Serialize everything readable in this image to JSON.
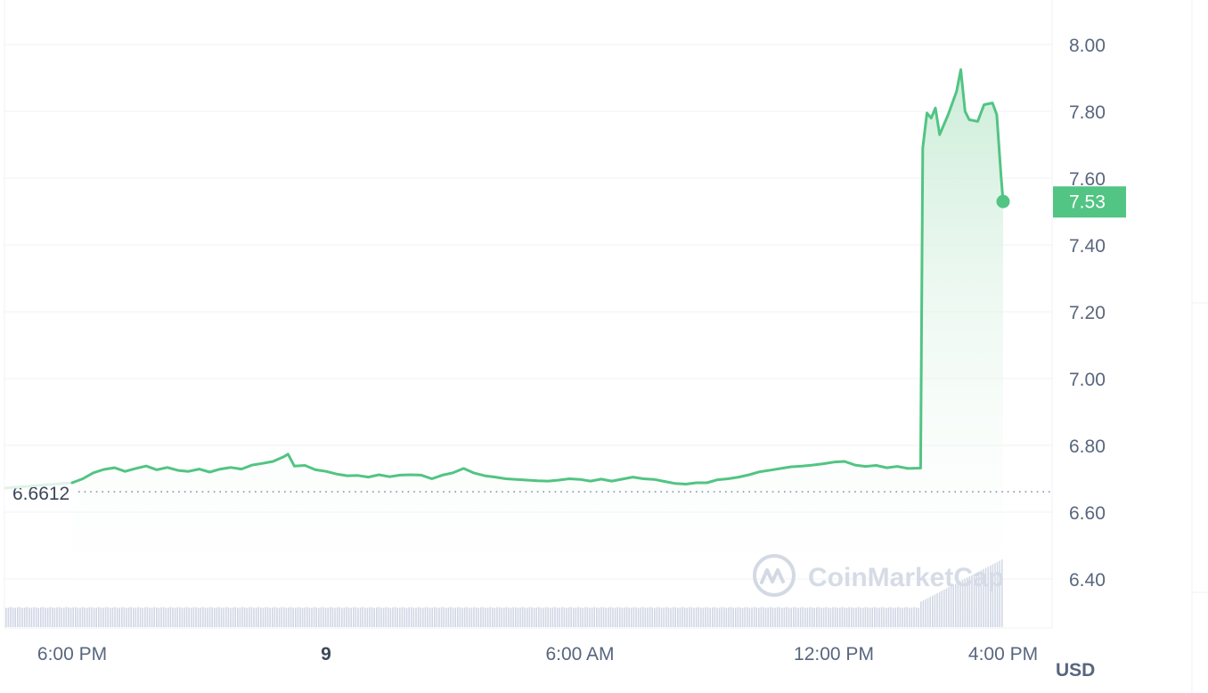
{
  "chart_data": {
    "type": "line",
    "title": "",
    "xlabel": "",
    "ylabel": "",
    "currency_label": "USD",
    "watermark": "CoinMarketCap",
    "y_ticks": [
      "8.00",
      "7.80",
      "7.60",
      "7.40",
      "7.20",
      "7.00",
      "6.80",
      "6.60",
      "6.40"
    ],
    "ylim": [
      6.32,
      8.1
    ],
    "x_ticks": [
      {
        "label": "6:00 PM",
        "t": 0,
        "bold": false
      },
      {
        "label": "9",
        "t": 6,
        "bold": true
      },
      {
        "label": "6:00 AM",
        "t": 12,
        "bold": false
      },
      {
        "label": "12:00 PM",
        "t": 18,
        "bold": false
      },
      {
        "label": "4:00 PM",
        "t": 22,
        "bold": false
      }
    ],
    "xlim": [
      -1.75,
      22.5
    ],
    "reference_line": {
      "value": 6.6612,
      "label": "6.6612"
    },
    "last_price": {
      "value": 7.53,
      "label": "7.53"
    },
    "colors": {
      "line": "#16c784",
      "line_stroke": "#52c483",
      "area_top": "#c9ecd6",
      "badge": "#52c483",
      "grid": "#eff2f5",
      "axis_text": "#58667e",
      "volume": "#cfd6e4"
    },
    "series": [
      {
        "points": [
          [
            0,
            6.688
          ],
          [
            0.25,
            6.7
          ],
          [
            0.5,
            6.718
          ],
          [
            0.75,
            6.728
          ],
          [
            1,
            6.733
          ],
          [
            1.25,
            6.722
          ],
          [
            1.5,
            6.731
          ],
          [
            1.75,
            6.738
          ],
          [
            2,
            6.727
          ],
          [
            2.25,
            6.734
          ],
          [
            2.5,
            6.725
          ],
          [
            2.75,
            6.722
          ],
          [
            3,
            6.729
          ],
          [
            3.25,
            6.72
          ],
          [
            3.5,
            6.729
          ],
          [
            3.75,
            6.734
          ],
          [
            4,
            6.729
          ],
          [
            4.25,
            6.741
          ],
          [
            4.5,
            6.746
          ],
          [
            4.75,
            6.752
          ],
          [
            5,
            6.766
          ],
          [
            5.1,
            6.774
          ],
          [
            5.25,
            6.738
          ],
          [
            5.5,
            6.74
          ],
          [
            5.75,
            6.727
          ],
          [
            6,
            6.722
          ],
          [
            6.25,
            6.714
          ],
          [
            6.5,
            6.709
          ],
          [
            6.75,
            6.71
          ],
          [
            7,
            6.705
          ],
          [
            7.25,
            6.712
          ],
          [
            7.5,
            6.706
          ],
          [
            7.75,
            6.711
          ],
          [
            8,
            6.712
          ],
          [
            8.25,
            6.711
          ],
          [
            8.5,
            6.7
          ],
          [
            8.75,
            6.711
          ],
          [
            9,
            6.718
          ],
          [
            9.25,
            6.731
          ],
          [
            9.5,
            6.717
          ],
          [
            9.75,
            6.709
          ],
          [
            10,
            6.705
          ],
          [
            10.25,
            6.7
          ],
          [
            10.5,
            6.698
          ],
          [
            10.75,
            6.696
          ],
          [
            11,
            6.694
          ],
          [
            11.25,
            6.693
          ],
          [
            11.5,
            6.696
          ],
          [
            11.75,
            6.7
          ],
          [
            12,
            6.698
          ],
          [
            12.25,
            6.693
          ],
          [
            12.5,
            6.699
          ],
          [
            12.75,
            6.693
          ],
          [
            13,
            6.699
          ],
          [
            13.25,
            6.705
          ],
          [
            13.5,
            6.7
          ],
          [
            13.75,
            6.698
          ],
          [
            14,
            6.692
          ],
          [
            14.25,
            6.686
          ],
          [
            14.5,
            6.684
          ],
          [
            14.75,
            6.688
          ],
          [
            15,
            6.688
          ],
          [
            15.25,
            6.697
          ],
          [
            15.5,
            6.7
          ],
          [
            15.75,
            6.705
          ],
          [
            16,
            6.712
          ],
          [
            16.25,
            6.721
          ],
          [
            16.5,
            6.726
          ],
          [
            16.75,
            6.731
          ],
          [
            17,
            6.736
          ],
          [
            17.25,
            6.738
          ],
          [
            17.5,
            6.741
          ],
          [
            17.75,
            6.745
          ],
          [
            18,
            6.75
          ],
          [
            18.25,
            6.752
          ],
          [
            18.5,
            6.741
          ],
          [
            18.75,
            6.737
          ],
          [
            19,
            6.74
          ],
          [
            19.25,
            6.733
          ],
          [
            19.5,
            6.737
          ],
          [
            19.75,
            6.731
          ],
          [
            20.05,
            6.732
          ],
          [
            20.1,
            7.69
          ],
          [
            20.2,
            7.795
          ],
          [
            20.3,
            7.78
          ],
          [
            20.4,
            7.81
          ],
          [
            20.5,
            7.73
          ],
          [
            20.6,
            7.76
          ],
          [
            20.7,
            7.79
          ],
          [
            20.9,
            7.86
          ],
          [
            21,
            7.925
          ],
          [
            21.1,
            7.8
          ],
          [
            21.2,
            7.775
          ],
          [
            21.4,
            7.77
          ],
          [
            21.55,
            7.82
          ],
          [
            21.75,
            7.825
          ],
          [
            21.85,
            7.79
          ],
          [
            21.95,
            7.61
          ],
          [
            22,
            7.53
          ]
        ]
      }
    ],
    "volume": {
      "segments": [
        {
          "from": -1.75,
          "to": 20.0,
          "level": 0.4
        },
        {
          "from": 20.0,
          "to": 22.0,
          "level_start": 0.5,
          "level_end": 1.4
        }
      ]
    }
  }
}
